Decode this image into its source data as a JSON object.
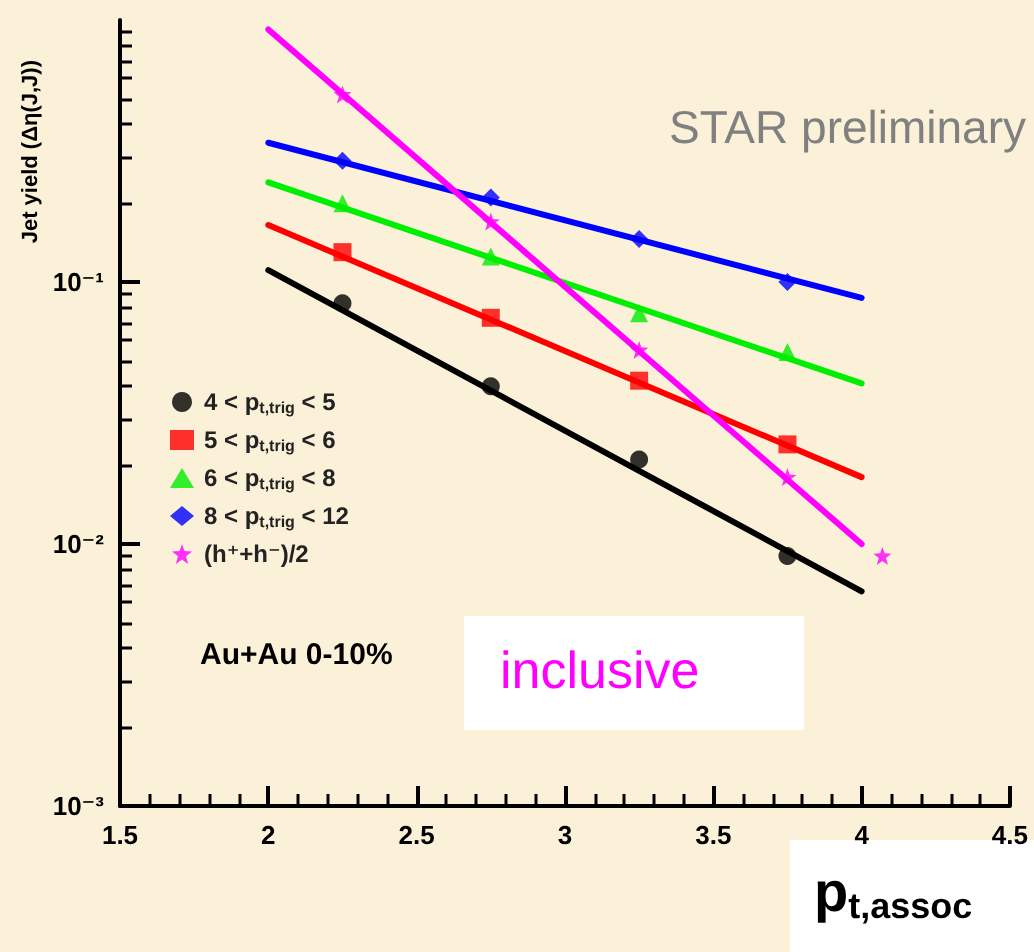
{
  "chart_data": {
    "type": "scatter",
    "xlabel": "p$_{t,assoc}$",
    "ylabel": "Jet yield (Δη(J,J))",
    "annotations": [
      "STAR preliminary",
      "Au+Au 0-10%",
      "inclusive"
    ],
    "log": "y",
    "grid": false,
    "legend": "left",
    "xlim": [
      1.5,
      4.5
    ],
    "xticks": [
      1.5,
      2,
      2.5,
      3,
      3.5,
      4,
      4.5
    ],
    "ylim": [
      0.001,
      1
    ],
    "yticks": [
      {
        "value": 0.001,
        "label": "10⁻³"
      },
      {
        "value": 0.01,
        "label": "10⁻²"
      },
      {
        "value": 0.1,
        "label": "10⁻¹"
      }
    ],
    "series": [
      {
        "name": "4 < p$_{t,trig}$ < 5",
        "color": "#000000",
        "marker": "circle",
        "x": [
          2.25,
          2.75,
          3.25,
          3.75
        ],
        "values": [
          0.083,
          0.04,
          0.021,
          0.009
        ]
      },
      {
        "name": "5 < p$_{t,trig}$ < 6",
        "color": "#ff0000",
        "marker": "square",
        "x": [
          2.25,
          2.75,
          3.25,
          3.75
        ],
        "values": [
          0.13,
          0.073,
          0.042,
          0.024
        ]
      },
      {
        "name": "6 < p$_{t,trig}$ < 8",
        "color": "#00ee00",
        "marker": "triangle",
        "x": [
          2.25,
          2.75,
          3.25,
          3.75
        ],
        "values": [
          0.2,
          0.125,
          0.076,
          0.054
        ]
      },
      {
        "name": "8 < p$_{t,trig}$ < 12",
        "color": "#0000ff",
        "marker": "diamond",
        "x": [
          2.25,
          2.75,
          3.25,
          3.75
        ],
        "values": [
          0.29,
          0.21,
          0.146,
          0.1
        ]
      },
      {
        "name": "(h⁺+h⁻)/2",
        "color": "#ff00ff",
        "marker": "star",
        "x": [
          2.25,
          2.75,
          3.25,
          3.75,
          4.07
        ],
        "values": [
          0.52,
          0.17,
          0.055,
          0.018,
          0.009
        ]
      },
      {
        "type": "line",
        "color": "#000000",
        "marker": "none",
        "x": [
          2,
          4
        ],
        "values": [
          0.111,
          0.0066
        ]
      },
      {
        "type": "line",
        "color": "#ff0000",
        "marker": "none",
        "x": [
          2,
          4
        ],
        "values": [
          0.165,
          0.018
        ]
      },
      {
        "type": "line",
        "color": "#00ee00",
        "marker": "none",
        "x": [
          2,
          4
        ],
        "values": [
          0.24,
          0.041
        ]
      },
      {
        "type": "line",
        "color": "#0000ff",
        "marker": "none",
        "x": [
          2,
          4
        ],
        "values": [
          0.34,
          0.087
        ]
      },
      {
        "type": "line",
        "color": "#ff00ff",
        "marker": "none",
        "x": [
          2,
          4
        ],
        "values": [
          0.92,
          0.01
        ]
      }
    ]
  }
}
